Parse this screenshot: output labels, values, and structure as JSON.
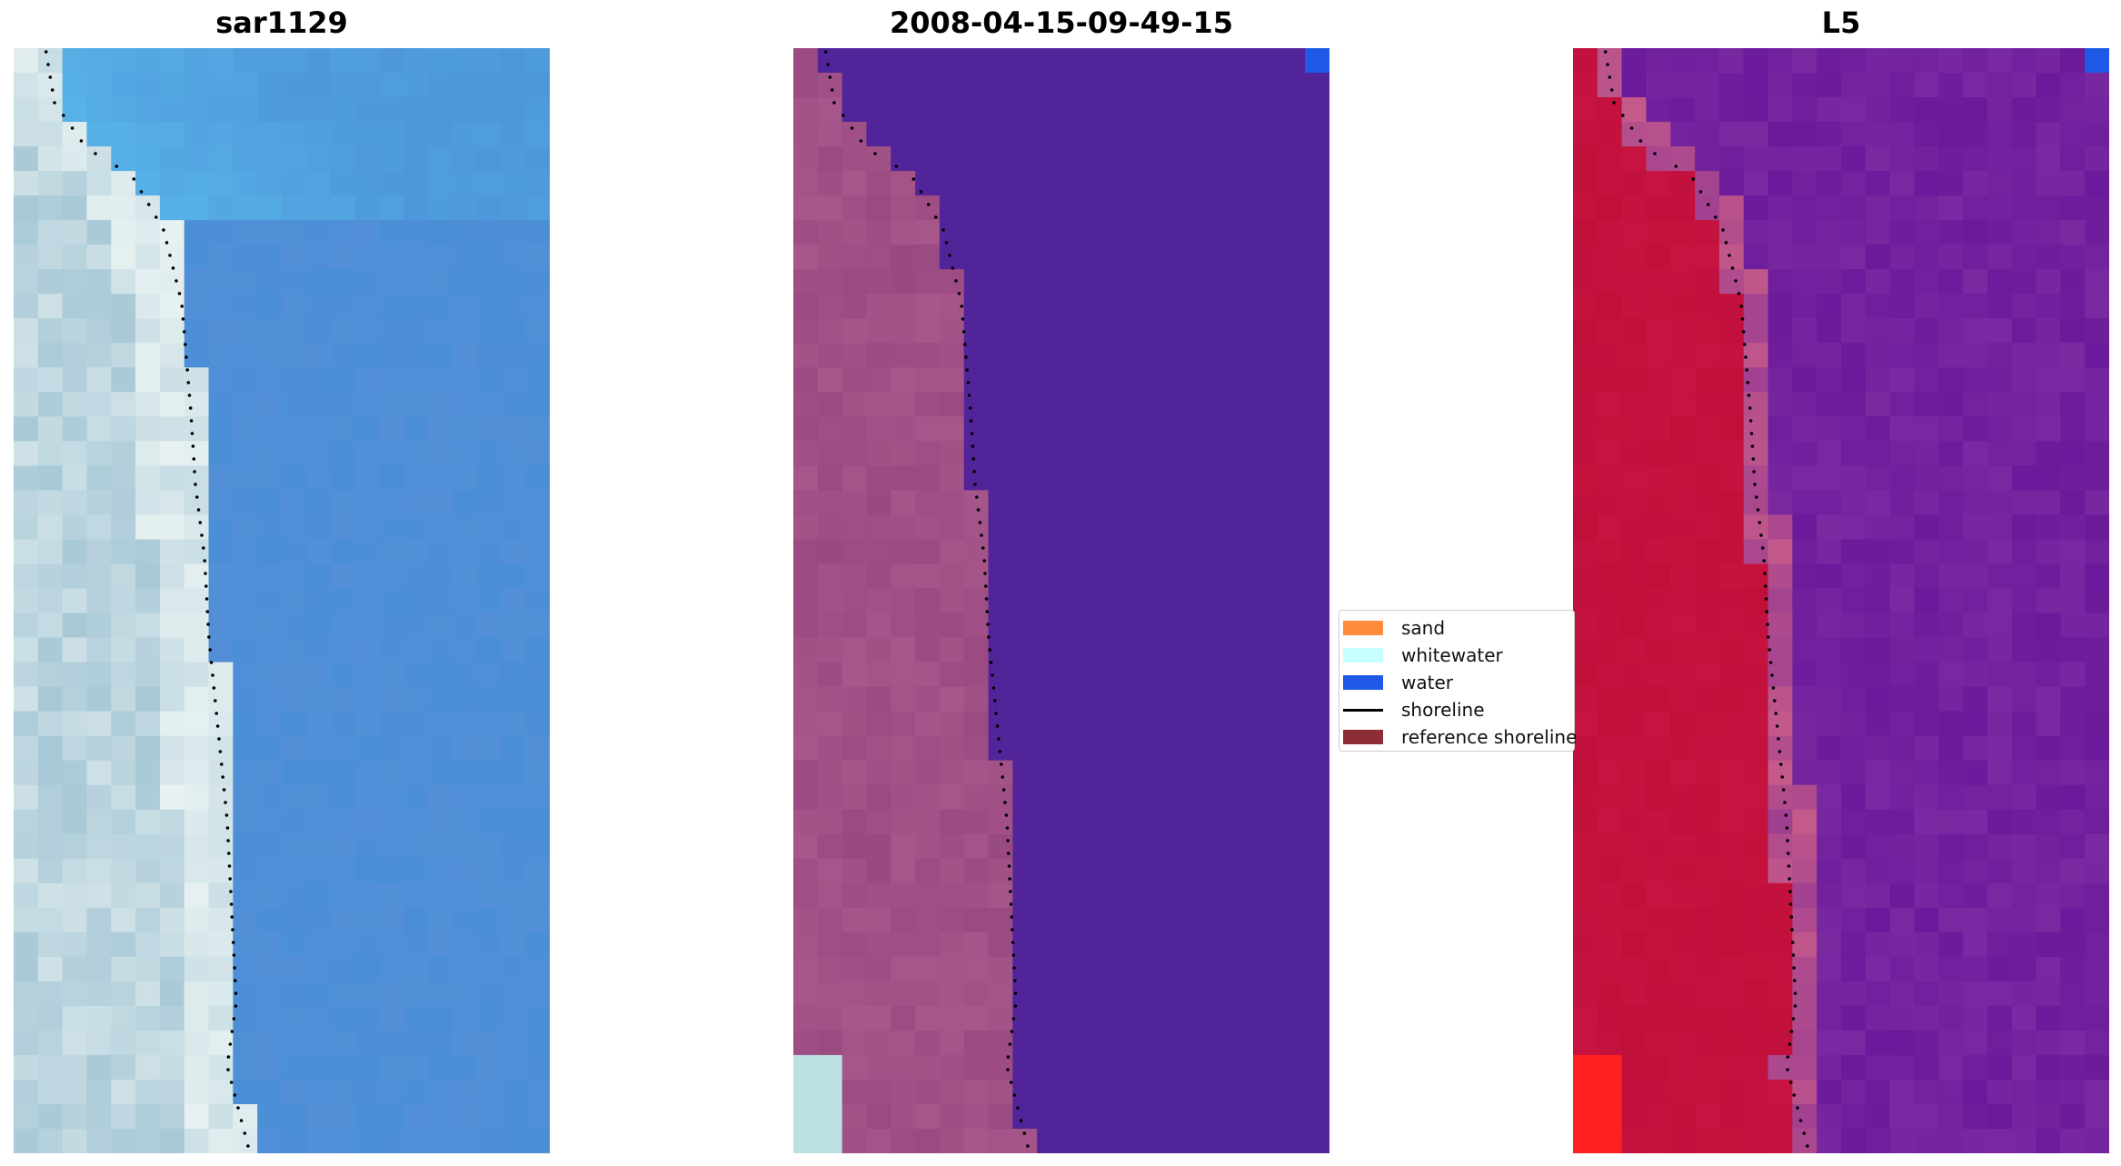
{
  "figure": {
    "panels": [
      {
        "title": "sar1129"
      },
      {
        "title": "2008-04-15-09-49-15"
      },
      {
        "title": "L5"
      }
    ]
  },
  "legend": {
    "items": [
      {
        "label": "sand",
        "kind": "patch",
        "color": "#ff8c3a"
      },
      {
        "label": "whitewater",
        "kind": "patch",
        "color": "#c8ffff"
      },
      {
        "label": "water",
        "kind": "patch",
        "color": "#1e5ae6"
      },
      {
        "label": "shoreline",
        "kind": "line",
        "color": "#000000"
      },
      {
        "label": "reference shoreline",
        "kind": "patch",
        "color": "#8c2d37"
      }
    ]
  },
  "colors": {
    "rgb_water": "#4a8fd6",
    "rgb_water_light": "#58b4e8",
    "rgb_land": "#a8c8d6",
    "rgb_foam": "#e8f2f2",
    "class_land": "#9a4a82",
    "class_water": "#52249a",
    "class_whitewater": "#bde0e0",
    "class_water_pixel": "#1e5ae6",
    "index_land": "#c0103a",
    "index_water": "#6a1a9a",
    "index_hot": "#ff2020"
  }
}
